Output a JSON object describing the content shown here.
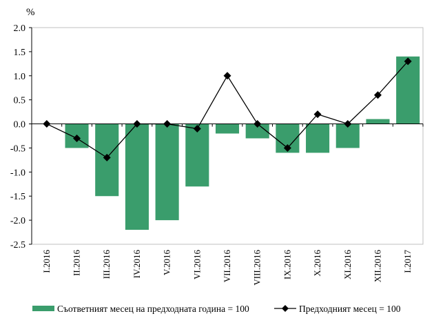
{
  "chart_data": {
    "type": "bar",
    "unit_label": "%",
    "categories": [
      "I.2016",
      "II.2016",
      "III.2016",
      "IV.2016",
      "V.2016",
      "VI.2016",
      "VII.2016",
      "VIII.2016",
      "IX.2016",
      "X.2016",
      "XI.2016",
      "XII.2016",
      "I.2017"
    ],
    "series": [
      {
        "name": "Съответният месец на предходната година = 100",
        "type": "bar",
        "color": "#3a9d6c",
        "values": [
          0,
          -0.5,
          -1.5,
          -2.2,
          -2.0,
          -1.3,
          -0.2,
          -0.3,
          -0.6,
          -0.6,
          -0.5,
          0.1,
          1.4
        ]
      },
      {
        "name": "Предходният месец = 100",
        "type": "line",
        "marker": "diamond",
        "color": "#000000",
        "values": [
          0,
          -0.3,
          -0.7,
          0,
          0,
          -0.1,
          1.0,
          0,
          -0.5,
          0.2,
          0,
          0.6,
          1.3
        ]
      }
    ],
    "ylim": [
      -2.5,
      2.0
    ],
    "yticks": [
      "2.0",
      "1.5",
      "1.0",
      "0.5",
      "0.0",
      "-0.5",
      "-1.0",
      "-1.5",
      "-2.0",
      "-2.5"
    ],
    "ytick_values": [
      2.0,
      1.5,
      1.0,
      0.5,
      0.0,
      -0.5,
      -1.0,
      -1.5,
      -2.0,
      -2.5
    ],
    "grid": false,
    "legend_position": "bottom"
  }
}
